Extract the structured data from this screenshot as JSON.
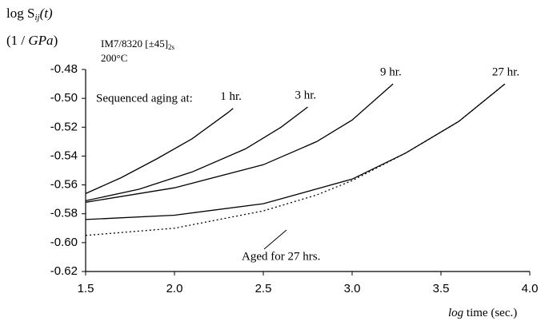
{
  "chart_data": {
    "type": "line",
    "ylabel": [
      "log S",
      "ij",
      "(t)"
    ],
    "yunit": [
      "(1 / ",
      "GPa",
      ")"
    ],
    "annotations": [
      [
        "IM7/8320 [±45]",
        "2s"
      ],
      "200°C",
      "Sequenced aging at:",
      "Aged for 27 hrs."
    ],
    "xlabel": [
      "log",
      " time (sec.)"
    ],
    "xlim": [
      1.5,
      4.0
    ],
    "ylim": [
      -0.62,
      -0.48
    ],
    "xticks": [
      1.5,
      {
        "value": 2,
        "label": "2.0"
      },
      2.5,
      {
        "value": 3,
        "label": "3.0"
      },
      3.5,
      {
        "value": 4,
        "label": "4.0"
      }
    ],
    "yticks": [
      -0.48,
      {
        "value": -0.5,
        "label": "-0.50"
      },
      -0.52,
      -0.54,
      -0.56,
      -0.58,
      {
        "value": -0.6,
        "label": "-0.60"
      },
      -0.62
    ],
    "series": [
      {
        "name": "1 hr.",
        "color": "#000000",
        "style": "solid",
        "x": [
          1.5,
          1.7,
          1.9,
          2.1,
          2.3,
          2.33
        ],
        "values": [
          -0.566,
          -0.555,
          -0.542,
          -0.528,
          -0.51,
          -0.507
        ]
      },
      {
        "name": "3 hr.",
        "color": "#000000",
        "style": "solid",
        "x": [
          1.5,
          1.8,
          2.1,
          2.4,
          2.6,
          2.75
        ],
        "values": [
          -0.571,
          -0.563,
          -0.551,
          -0.535,
          -0.52,
          -0.506
        ]
      },
      {
        "name": "9 hr.",
        "color": "#000000",
        "style": "solid",
        "x": [
          1.5,
          2.0,
          2.5,
          2.8,
          3.0,
          3.23
        ],
        "values": [
          -0.572,
          -0.562,
          -0.546,
          -0.53,
          -0.515,
          -0.49
        ]
      },
      {
        "name": "27 hr.",
        "color": "#000000",
        "style": "solid",
        "x": [
          1.5,
          2.0,
          2.5,
          3.0,
          3.3,
          3.6,
          3.86
        ],
        "values": [
          -0.584,
          -0.581,
          -0.573,
          -0.556,
          -0.538,
          -0.516,
          -0.49
        ]
      },
      {
        "name": null,
        "color": "#000000",
        "style": "dotted",
        "x": [
          1.5,
          2.0,
          2.5,
          2.8,
          3.0,
          3.3,
          3.6,
          3.86
        ],
        "values": [
          -0.595,
          -0.59,
          -0.578,
          -0.567,
          -0.557,
          -0.538,
          -0.516,
          -0.49
        ]
      }
    ]
  }
}
